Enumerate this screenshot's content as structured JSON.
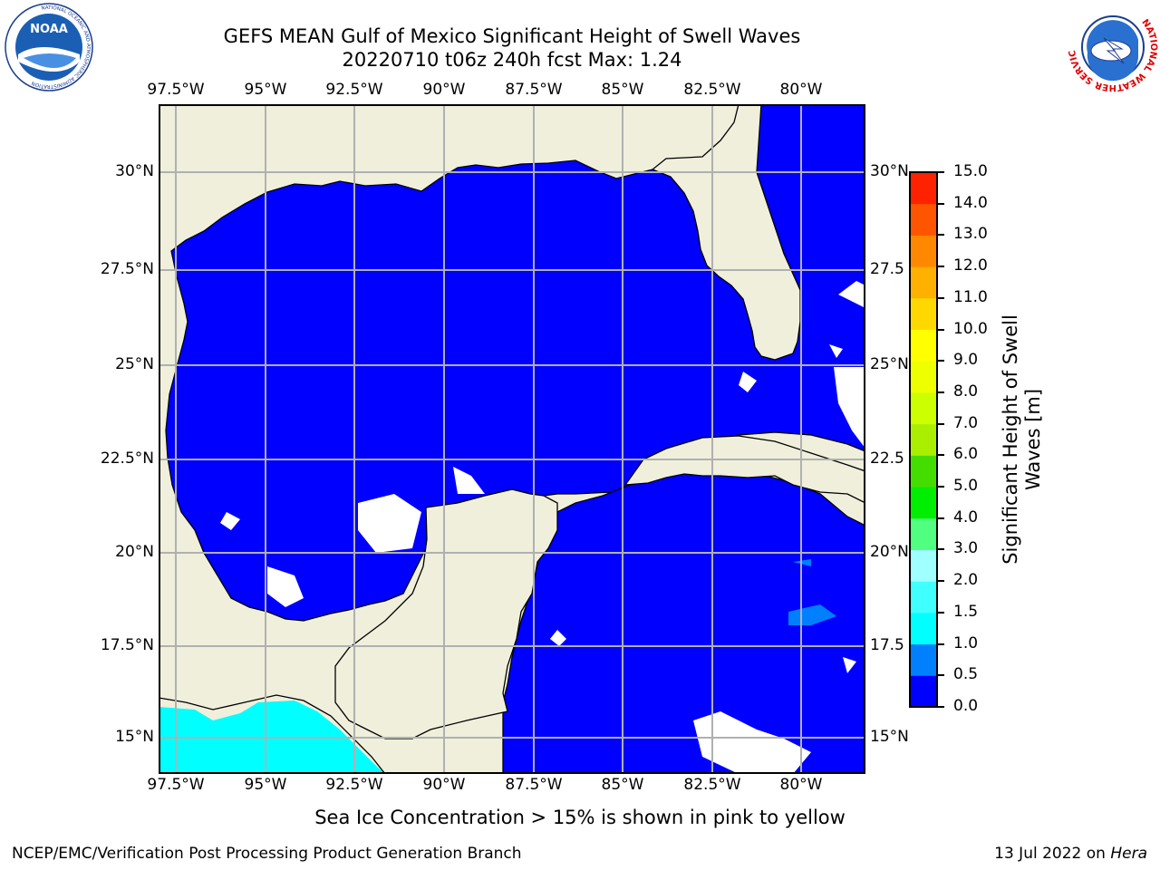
{
  "header": {
    "title_line1": "GEFS MEAN Gulf of Mexico Significant Height of Swell Waves",
    "title_line2": "20220710 t06z 240h fcst   Max: 1.24"
  },
  "logos": {
    "left": {
      "text": "NOAA",
      "ring_text": "NATIONAL OCEANIC AND ATMOSPHERIC ADMINISTRATION",
      "ring_text_bottom": "U.S. DEPARTMENT OF COMMERCE"
    },
    "right": {
      "ring_text": "NATIONAL WEATHER SERVICE"
    }
  },
  "map": {
    "lon_labels": [
      "97.5°W",
      "95°W",
      "92.5°W",
      "90°W",
      "87.5°W",
      "85°W",
      "82.5°W",
      "80°W"
    ],
    "lat_labels_left": [
      "30°N",
      "27.5°N",
      "25°N",
      "22.5°N",
      "20°N",
      "17.5°N",
      "15°N"
    ],
    "lat_labels_right": [
      "30°N",
      "27.5",
      "25°N",
      "22.5",
      "20°N",
      "17.5",
      "15°N"
    ],
    "colors": {
      "ocean": "#0000ff",
      "land": "#efefdc",
      "grid": "#b0b0b0",
      "swell_low": "#0080ff",
      "swell_mid": "#00ffff"
    }
  },
  "colorbar": {
    "label_line1": "Significant Height of Swell",
    "label_line2": "Waves [m]",
    "ticks": [
      "0.0",
      "0.5",
      "1.0",
      "1.5",
      "2.0",
      "3.0",
      "4.0",
      "5.0",
      "6.0",
      "7.0",
      "8.0",
      "9.0",
      "10.0",
      "11.0",
      "12.0",
      "13.0",
      "14.0",
      "15.0"
    ],
    "colors": [
      "#0000ff",
      "#0080ff",
      "#00ffff",
      "#40ffff",
      "#a0ffff",
      "#50ff80",
      "#00ee00",
      "#44dd00",
      "#aaee00",
      "#ccff00",
      "#eeff00",
      "#ffff00",
      "#ffd800",
      "#ffb000",
      "#ff8800",
      "#ff5500",
      "#ff2200"
    ]
  },
  "notes": {
    "sea_ice": "Sea Ice Concentration > 15% is shown in pink to yellow"
  },
  "footer": {
    "left": "NCEP/EMC/Verification Post Processing Product Generation Branch",
    "date": "13 Jul 2022 on ",
    "host": "Hera"
  }
}
